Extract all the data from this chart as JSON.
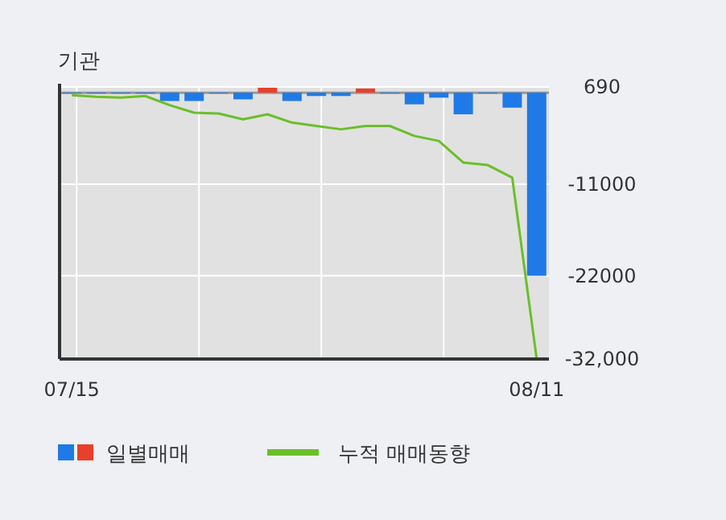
{
  "chart_data": {
    "type": "bar",
    "title": "기관",
    "categories": [
      "07/15",
      null,
      null,
      null,
      null,
      null,
      null,
      null,
      null,
      null,
      null,
      null,
      null,
      null,
      null,
      null,
      null,
      null,
      null,
      "08/11"
    ],
    "series": [
      {
        "name": "일별매매",
        "colors": [
          "#1f7ae8",
          "#1f7ae8",
          "#1f7ae8",
          "#1f7ae8",
          "#1f7ae8",
          "#1f7ae8",
          "#1f7ae8",
          "#1f7ae8",
          "#e8402c",
          "#1f7ae8",
          "#1f7ae8",
          "#1f7ae8",
          "#e8402c",
          "#1f7ae8",
          "#1f7ae8",
          "#1f7ae8",
          "#1f7ae8",
          "#1f7ae8",
          "#1f7ae8",
          "#1f7ae8"
        ],
        "values": [
          -100,
          -100,
          -100,
          -100,
          -1000,
          -1000,
          0,
          -800,
          600,
          -1000,
          -400,
          -400,
          500,
          -100,
          -1400,
          -600,
          -2600,
          0,
          -1800,
          -22000
        ]
      },
      {
        "name": "누적 매매동향",
        "type": "line",
        "color": "#6abf2a",
        "values": [
          -300,
          -500,
          -600,
          -400,
          -1500,
          -2400,
          -2500,
          -3200,
          -2600,
          -3600,
          -4000,
          -4400,
          -4000,
          -4000,
          -5200,
          -5800,
          -8400,
          -8700,
          -10200,
          -32000
        ]
      }
    ],
    "ylim": [
      -32000,
      690
    ],
    "yticks": [
      690,
      -11000,
      -22000,
      {
        "value": -32000,
        "label": "-32,000"
      }
    ],
    "grid": true,
    "legend": "bottom"
  }
}
